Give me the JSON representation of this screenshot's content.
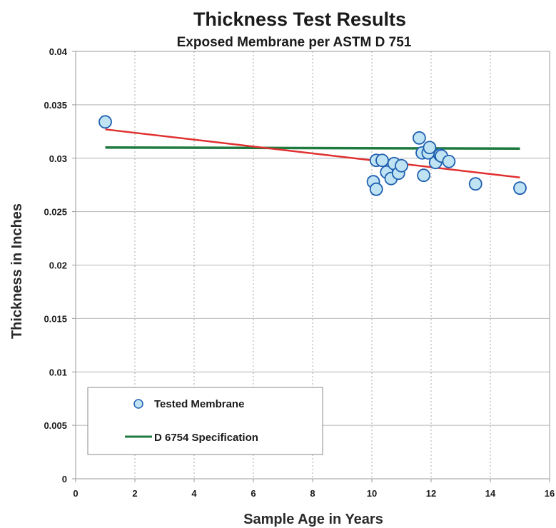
{
  "chart_data": {
    "type": "scatter",
    "title": "Thickness Test Results",
    "subtitle": "Exposed Membrane per ASTM D 751",
    "xlabel": "Sample Age in Years",
    "ylabel": "Thickness in Inches",
    "xlim": [
      0,
      16
    ],
    "ylim": [
      0,
      0.04
    ],
    "x_ticks": [
      0,
      2,
      4,
      6,
      8,
      10,
      12,
      14,
      16
    ],
    "x_tick_labels": [
      "0",
      "2",
      "4",
      "6",
      "8",
      "10",
      "12",
      "14",
      "16"
    ],
    "y_ticks": [
      0,
      0.005,
      0.01,
      0.015,
      0.02,
      0.025,
      0.03,
      0.035,
      0.04
    ],
    "y_tick_labels": [
      "0",
      "0.005",
      "0.01",
      "0.015",
      "0.02",
      "0.025",
      "0.03",
      "0.035",
      "0.04"
    ],
    "grid": {
      "x": "dashed",
      "y": "solid"
    },
    "legend_placement": "bottom-left",
    "series": [
      {
        "name": "Tested Membrane",
        "kind": "scatter",
        "color": "#bfe3f3",
        "edge_color": "#1f5fb0",
        "points": [
          [
            1.0,
            0.0334
          ],
          [
            10.05,
            0.0278
          ],
          [
            10.15,
            0.0298
          ],
          [
            10.15,
            0.0271
          ],
          [
            10.35,
            0.0298
          ],
          [
            10.5,
            0.0287
          ],
          [
            10.65,
            0.0281
          ],
          [
            10.75,
            0.0295
          ],
          [
            10.9,
            0.0286
          ],
          [
            11.0,
            0.0293
          ],
          [
            11.6,
            0.0319
          ],
          [
            11.7,
            0.0305
          ],
          [
            11.75,
            0.0284
          ],
          [
            11.9,
            0.0305
          ],
          [
            11.95,
            0.031
          ],
          [
            12.15,
            0.0296
          ],
          [
            12.3,
            0.0303
          ],
          [
            12.35,
            0.0302
          ],
          [
            12.6,
            0.0297
          ],
          [
            13.5,
            0.0276
          ],
          [
            15.0,
            0.0272
          ]
        ]
      },
      {
        "name": "D 6754 Specification",
        "kind": "line",
        "color": "#1e7a3e",
        "points": [
          [
            1.0,
            0.031
          ],
          [
            15.0,
            0.0309
          ]
        ]
      },
      {
        "name": "",
        "kind": "trendline",
        "color": "#e03030",
        "points": [
          [
            1.0,
            0.0327
          ],
          [
            15.0,
            0.0282
          ]
        ]
      }
    ]
  }
}
